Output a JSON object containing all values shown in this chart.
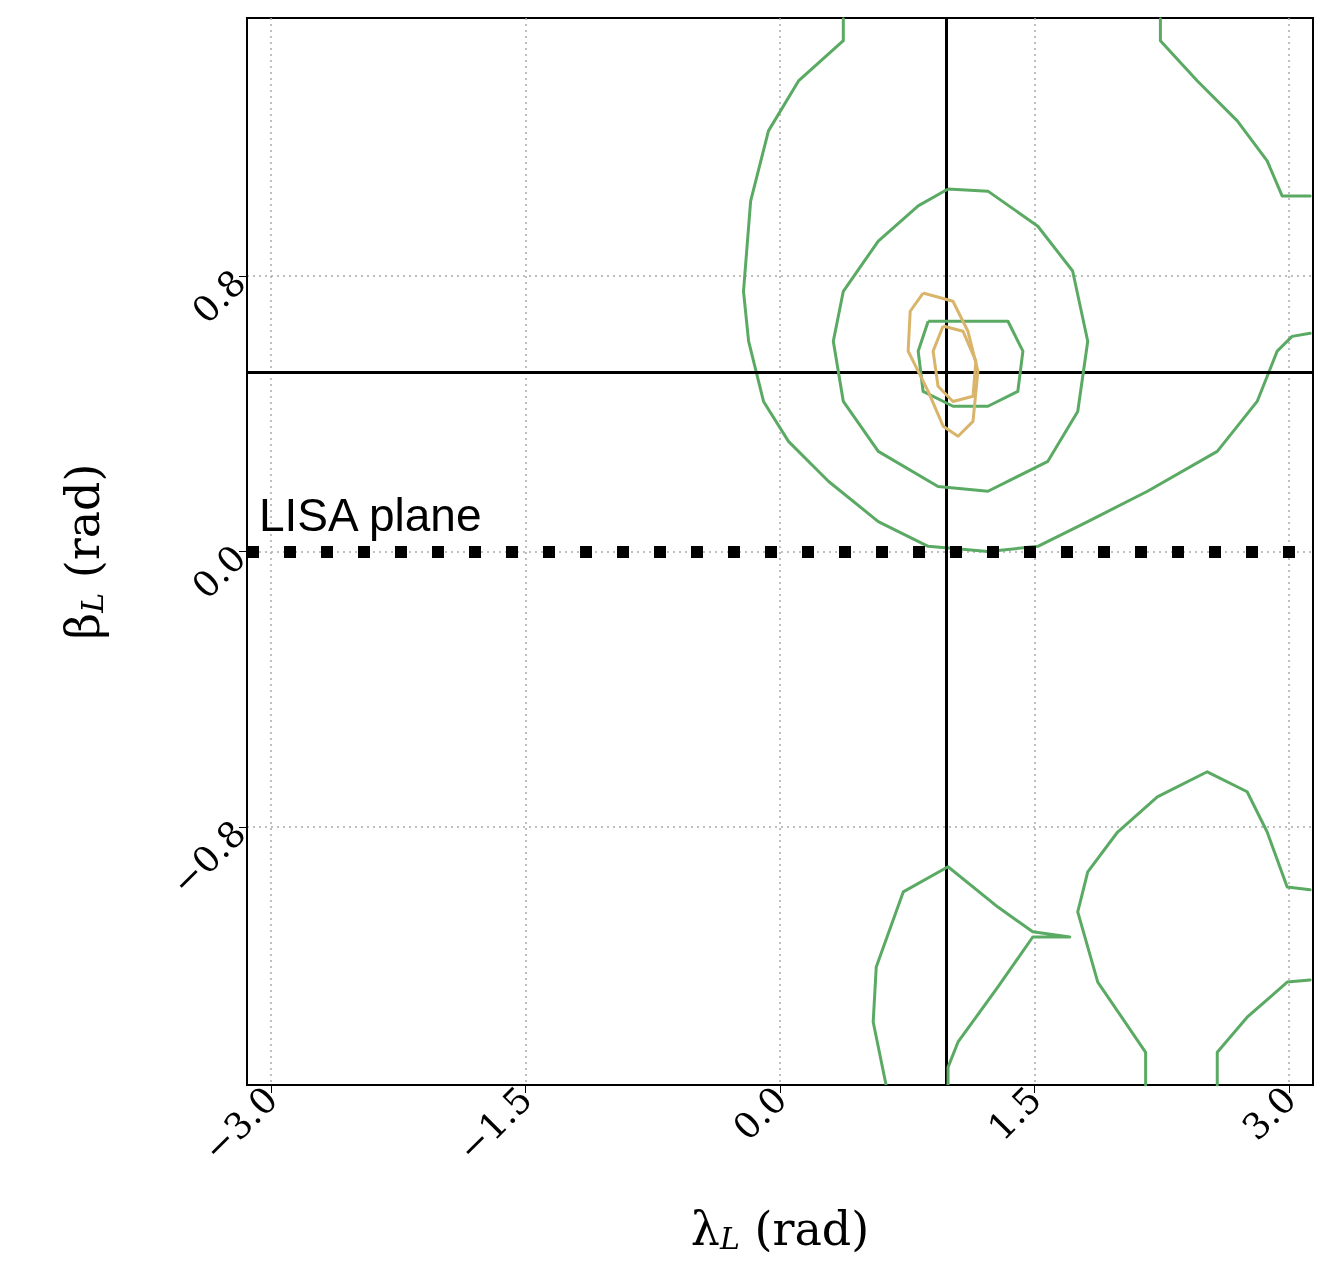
{
  "chart_data": {
    "type": "line",
    "xlabel": "λ$_{L}$ (rad)",
    "ylabel": "β$_{L}$ (rad)",
    "xlim": [
      -3.14,
      3.14
    ],
    "ylim": [
      -1.55,
      1.55
    ],
    "xticks": [
      {
        "value": -3.0,
        "label": "−3.0"
      },
      {
        "value": -1.5,
        "label": "−1.5"
      },
      {
        "value": 0.0,
        "label": "0.0"
      },
      {
        "value": 1.5,
        "label": "1.5"
      },
      {
        "value": 3.0,
        "label": "3.0"
      }
    ],
    "yticks": [
      {
        "value": -0.8,
        "label": "−0.8"
      },
      {
        "value": 0.0,
        "label": "0.0"
      },
      {
        "value": 0.8,
        "label": "0.8"
      }
    ],
    "grid": true,
    "marker": "none",
    "line_style": "solid",
    "series": [
      {
        "color": "#5aaa64",
        "x": [
          0.373,
          0.373,
          0.109,
          -0.068,
          -0.173,
          -0.215,
          -0.185,
          -0.097,
          0.05,
          0.285,
          0.579,
          0.873,
          1.225,
          1.519,
          1.813,
          2.165,
          2.576,
          2.811,
          2.929,
          3.017,
          3.123
        ],
        "values": [
          1.548,
          1.484,
          1.367,
          1.222,
          1.018,
          0.756,
          0.611,
          0.436,
          0.32,
          0.204,
          0.087,
          0.015,
          0.0,
          0.015,
          0.087,
          0.175,
          0.291,
          0.436,
          0.582,
          0.625,
          0.634
        ]
      },
      {
        "color": "#5aaa64",
        "x": [
          2.241,
          2.241,
          2.459,
          2.694,
          2.87,
          2.958,
          3.123
        ],
        "values": [
          1.548,
          1.484,
          1.367,
          1.251,
          1.135,
          1.033,
          1.033
        ]
      },
      {
        "color": "#5aaa64",
        "x": [
          3.123,
          2.988,
          2.87,
          2.752,
          2.517,
          2.223,
          1.989,
          1.813,
          1.754,
          1.872,
          2.154,
          2.154
        ],
        "values": [
          -0.983,
          -0.975,
          -0.815,
          -0.698,
          -0.64,
          -0.713,
          -0.815,
          -0.931,
          -1.047,
          -1.251,
          -1.455,
          -1.55
        ]
      },
      {
        "color": "#5aaa64",
        "x": [
          2.576,
          2.576,
          2.752,
          2.988,
          3.123
        ],
        "values": [
          -1.55,
          -1.455,
          -1.353,
          -1.251,
          -1.245
        ]
      }
    ],
    "ref_lines": [
      {
        "axis": "x",
        "value": 0.98,
        "color": "#000000",
        "line_style": "solid"
      },
      {
        "axis": "y",
        "value": 0.52,
        "color": "#000000",
        "line_style": "solid"
      },
      {
        "axis": "y",
        "value": 0.0,
        "label": "LISA plane",
        "color": "#000000",
        "line_style": "dotted"
      }
    ]
  }
}
